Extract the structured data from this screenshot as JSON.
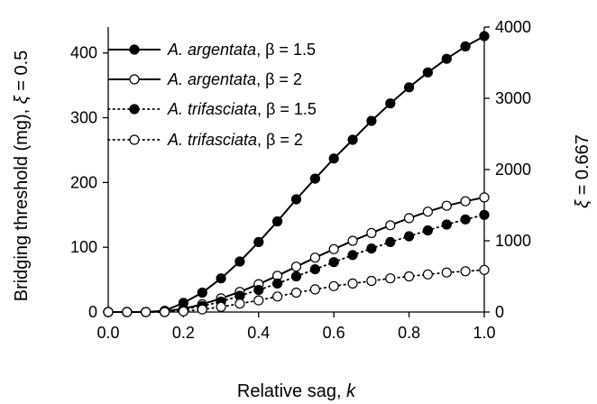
{
  "chart_data": {
    "type": "line",
    "xlabel_prefix": "Relative sag, ",
    "xlabel_var": "k",
    "ylabel_left_main": "Bridging threshold (mg), ",
    "ylabel_left_var": "ξ",
    "ylabel_left_suffix": " = 0.5",
    "ylabel_right_var": "ξ",
    "ylabel_right_suffix": " = 0.667",
    "xlim": [
      0,
      1
    ],
    "ylim_left": [
      0,
      440
    ],
    "ylim_right": [
      0,
      4000
    ],
    "xticks": [
      "0.0",
      "0.2",
      "0.4",
      "0.6",
      "0.8",
      "1.0"
    ],
    "yticks_left": [
      "0",
      "100",
      "200",
      "300",
      "400"
    ],
    "yticks_right": [
      "0",
      "1000",
      "2000",
      "3000",
      "4000"
    ],
    "grid": false,
    "legend_position": "top-left",
    "x": [
      0,
      0.05,
      0.1,
      0.15,
      0.2,
      0.25,
      0.3,
      0.35,
      0.4,
      0.45,
      0.5,
      0.55,
      0.6,
      0.65,
      0.7,
      0.75,
      0.8,
      0.85,
      0.9,
      0.95,
      1.0
    ],
    "series": [
      {
        "name_italic": "A. argentata",
        "name_beta": ", β = 1.5",
        "marker": "filled",
        "line": "solid",
        "axis": "left",
        "values": [
          0,
          0,
          0,
          2,
          14,
          30,
          52,
          78,
          108,
          140,
          174,
          206,
          237,
          266,
          295,
          322,
          347,
          370,
          391,
          410,
          426
        ]
      },
      {
        "name_italic": "A. argentata",
        "name_beta": ", β = 2",
        "marker": "open",
        "line": "solid",
        "axis": "left",
        "values": [
          0,
          0,
          0,
          1,
          5,
          12,
          21,
          31,
          43,
          56,
          70,
          84,
          97,
          110,
          122,
          134,
          145,
          155,
          164,
          171,
          177
        ]
      },
      {
        "name_italic": "A. trifasciata",
        "name_beta": ", β = 1.5",
        "marker": "filled",
        "line": "dotted",
        "axis": "left",
        "values": [
          0,
          0,
          0,
          0,
          4,
          9,
          16,
          25,
          34,
          44,
          55,
          66,
          77,
          88,
          98,
          108,
          117,
          126,
          135,
          143,
          150
        ]
      },
      {
        "name_italic": "A. trifasciata",
        "name_beta": ", β = 2",
        "marker": "open",
        "line": "dotted",
        "axis": "left",
        "values": [
          0,
          0,
          0,
          0,
          1,
          4,
          8,
          13,
          18,
          24,
          30,
          35,
          40,
          44,
          48,
          52,
          55,
          58,
          61,
          63,
          65
        ]
      }
    ]
  }
}
